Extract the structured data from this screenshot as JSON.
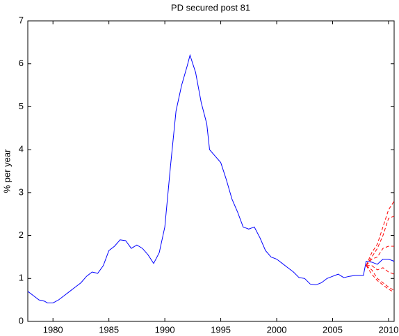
{
  "chart_data": {
    "type": "line",
    "title": "PD secured post 81",
    "y_label": "% per year",
    "xlim": [
      1977.75,
      2010.5
    ],
    "ylim": [
      0,
      7
    ],
    "xticks": [
      1980,
      1985,
      1990,
      1995,
      2000,
      2005,
      2010
    ],
    "yticks": [
      0,
      1,
      2,
      3,
      4,
      5,
      6,
      7
    ],
    "series": [
      {
        "color": "#0000ff",
        "linestyle": "solid",
        "x": [
          1977.75,
          1978.25,
          1978.75,
          1979.25,
          1979.5,
          1980,
          1980.5,
          1981,
          1981.5,
          1982,
          1982.5,
          1983,
          1983.5,
          1984,
          1984.5,
          1985,
          1985.5,
          1986,
          1986.5,
          1987,
          1987.5,
          1988,
          1988.5,
          1989,
          1989.5,
          1990,
          1990.5,
          1991,
          1991.5,
          1992,
          1992.25,
          1992.75,
          1993.25,
          1993.75,
          1994,
          1994.5,
          1995,
          1995.5,
          1996,
          1996.5,
          1997,
          1997.5,
          1998,
          1998.5,
          1999,
          1999.5,
          2000,
          2000.5,
          2001,
          2001.5,
          2002,
          2002.5,
          2003,
          2003.5,
          2004,
          2004.5,
          2005,
          2005.5,
          2006,
          2006.5,
          2007,
          2007.75,
          2008,
          2008.5,
          2009,
          2009.5,
          2010,
          2010.5
        ],
        "values": [
          0.7,
          0.6,
          0.5,
          0.47,
          0.43,
          0.43,
          0.5,
          0.6,
          0.7,
          0.8,
          0.9,
          1.05,
          1.15,
          1.12,
          1.3,
          1.65,
          1.75,
          1.9,
          1.88,
          1.7,
          1.78,
          1.7,
          1.55,
          1.35,
          1.6,
          2.2,
          3.6,
          4.9,
          5.5,
          5.95,
          6.2,
          5.8,
          5.1,
          4.6,
          4.0,
          3.85,
          3.7,
          3.3,
          2.85,
          2.55,
          2.2,
          2.15,
          2.2,
          1.95,
          1.65,
          1.5,
          1.45,
          1.35,
          1.25,
          1.15,
          1.02,
          1.0,
          0.87,
          0.85,
          0.9,
          1.0,
          1.05,
          1.1,
          1.02,
          1.05,
          1.07,
          1.07,
          1.4,
          1.38,
          1.33,
          1.45,
          1.45,
          1.4
        ]
      },
      {
        "color": "#ff0000",
        "linestyle": "dashed",
        "x": [
          2008,
          2008.5,
          2009,
          2009.5,
          2010,
          2010.5
        ],
        "values": [
          1.3,
          1.6,
          1.8,
          2.2,
          2.6,
          2.8
        ]
      },
      {
        "color": "#ff0000",
        "linestyle": "dashed",
        "x": [
          2008,
          2008.5,
          2009,
          2009.5,
          2010,
          2010.5
        ],
        "values": [
          1.3,
          1.5,
          1.7,
          2.0,
          2.4,
          2.45
        ]
      },
      {
        "color": "#ff0000",
        "linestyle": "dashed",
        "x": [
          2008,
          2008.5,
          2009,
          2009.5,
          2010,
          2010.5
        ],
        "values": [
          1.3,
          1.45,
          1.5,
          1.7,
          1.75,
          1.75
        ]
      },
      {
        "color": "#ff0000",
        "linestyle": "dashed",
        "x": [
          2008,
          2008.5,
          2009,
          2009.5,
          2010,
          2010.5
        ],
        "values": [
          1.3,
          1.3,
          1.2,
          1.25,
          1.15,
          1.1
        ]
      },
      {
        "color": "#ff0000",
        "linestyle": "dashed",
        "x": [
          2008,
          2008.5,
          2009,
          2009.5,
          2010,
          2010.5
        ],
        "values": [
          1.3,
          1.2,
          1.0,
          0.9,
          0.8,
          0.72
        ]
      },
      {
        "color": "#ff0000",
        "linestyle": "dashed",
        "x": [
          2008,
          2008.5,
          2009,
          2009.5,
          2010,
          2010.5
        ],
        "values": [
          1.3,
          1.1,
          0.95,
          0.85,
          0.75,
          0.68
        ]
      }
    ]
  }
}
